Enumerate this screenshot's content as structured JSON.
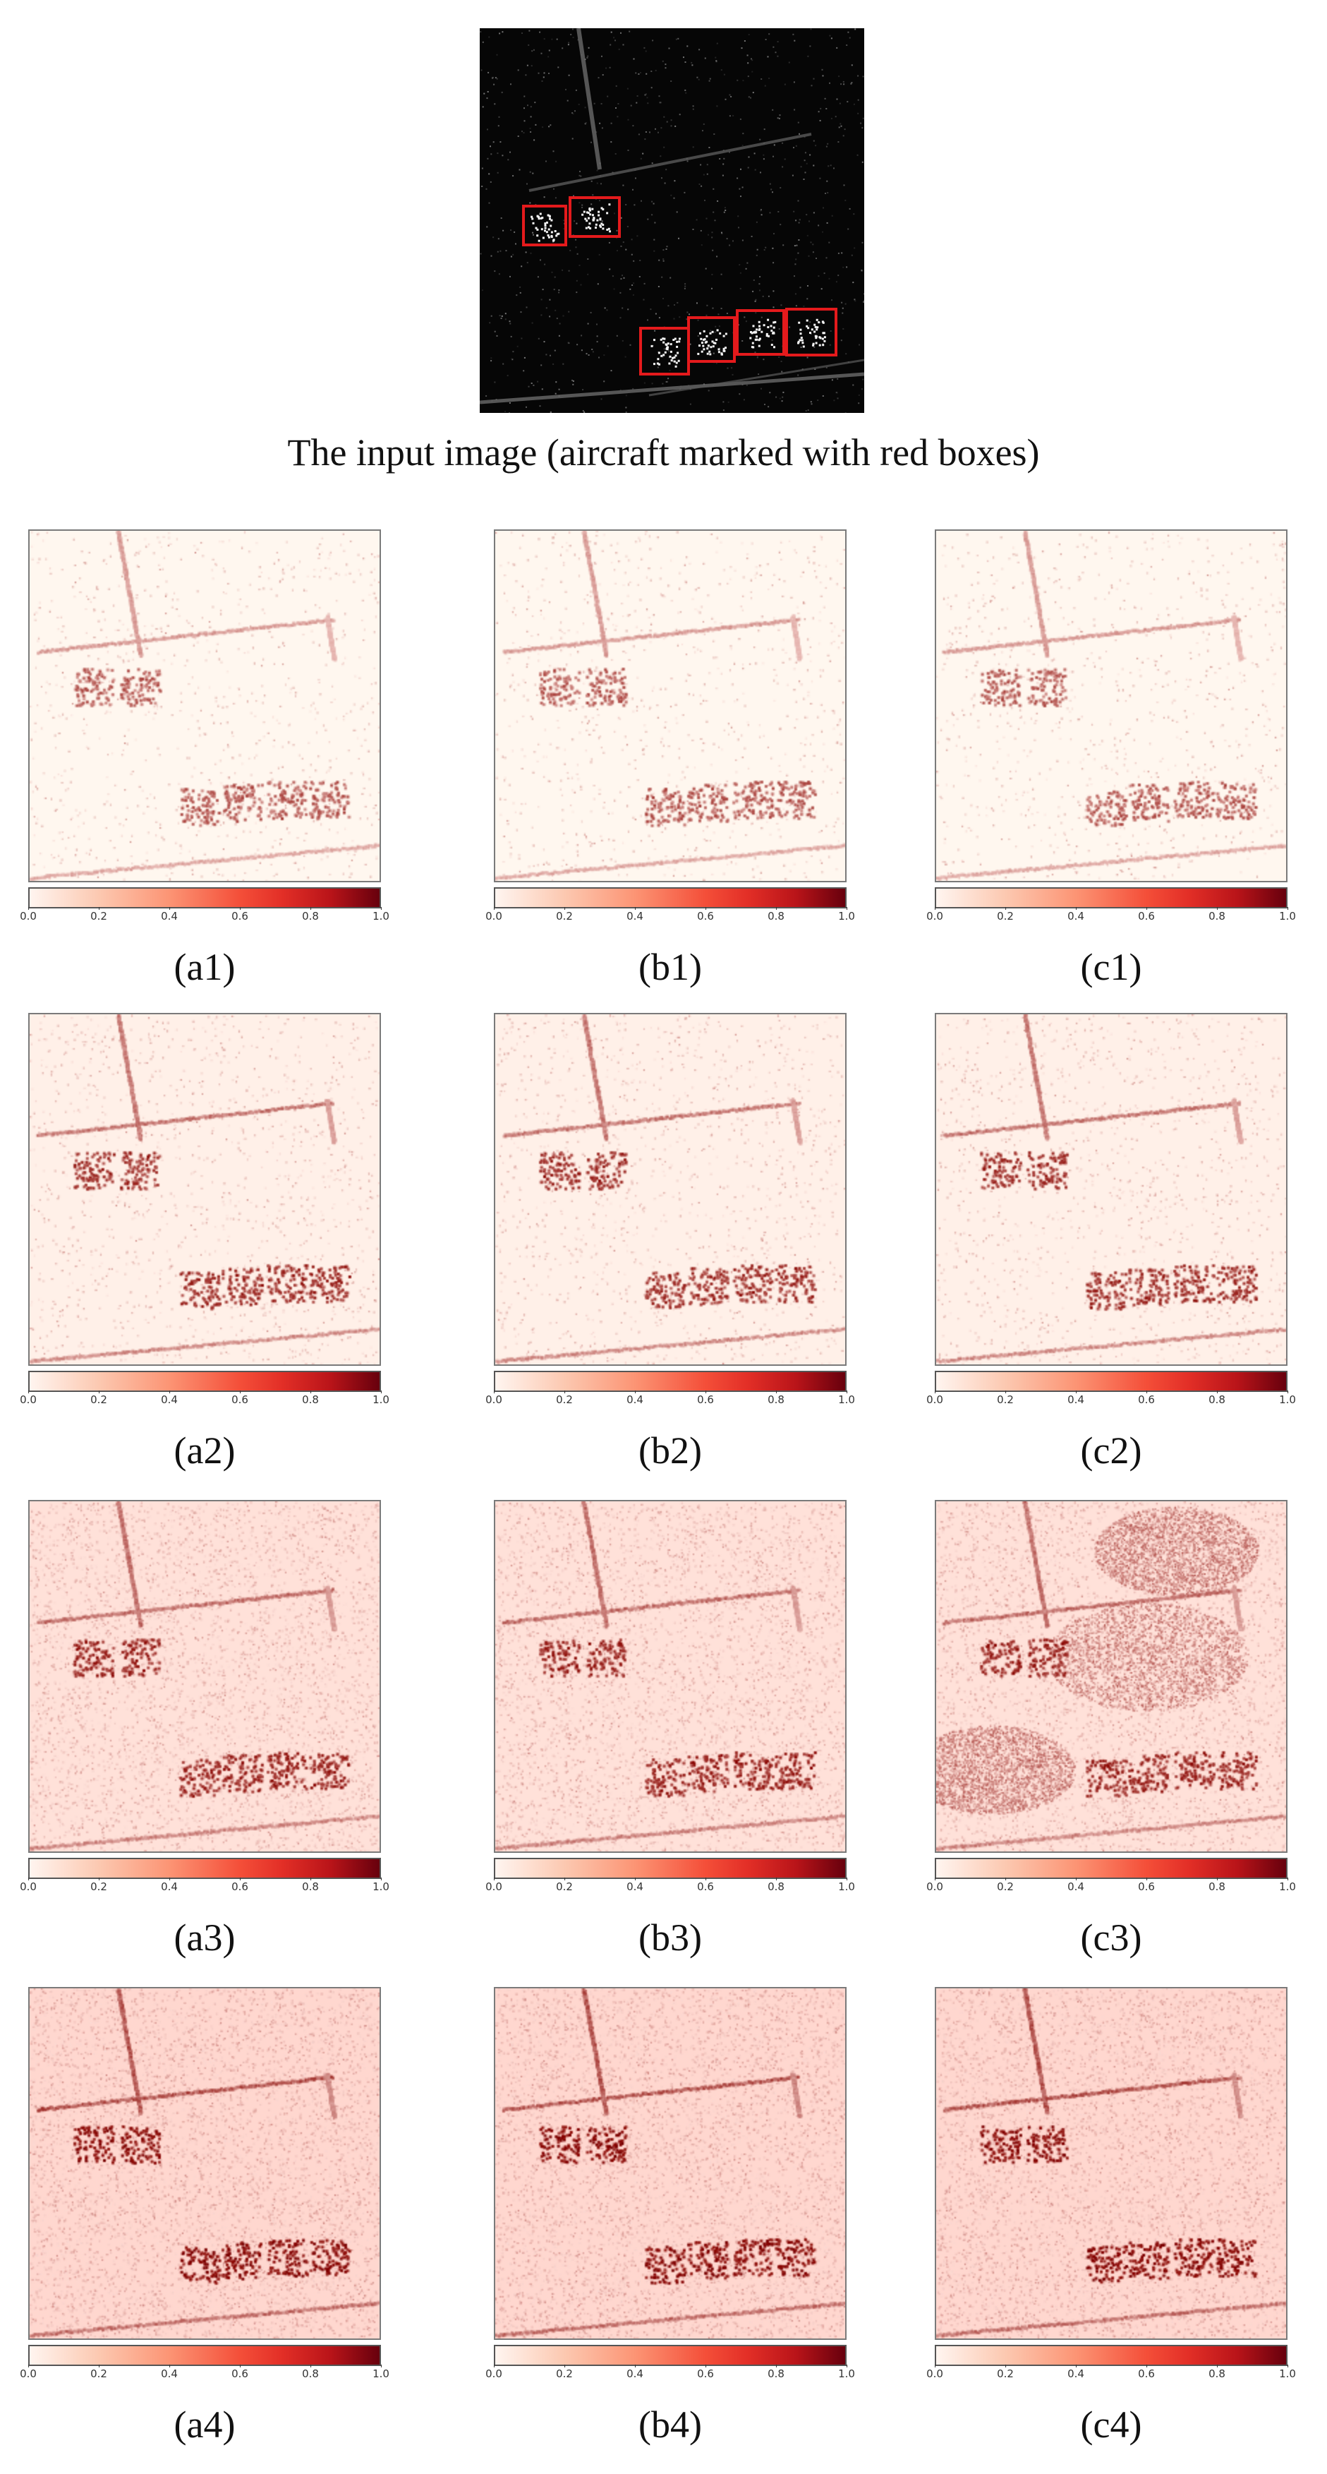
{
  "input_caption": "The input image (aircraft marked with red boxes)",
  "colorbar_ticks": [
    "0.0",
    "0.2",
    "0.4",
    "0.6",
    "0.8",
    "1.0"
  ],
  "colors": {
    "box": "#e41a1c",
    "heat_low": "#fff5f0",
    "heat_high": "#67000d"
  },
  "rows": [
    {
      "cells": [
        {
          "label": "(a1)"
        },
        {
          "label": "(b1)"
        },
        {
          "label": "(c1)"
        }
      ]
    },
    {
      "cells": [
        {
          "label": "(a2)"
        },
        {
          "label": "(b2)"
        },
        {
          "label": "(c2)"
        }
      ]
    },
    {
      "cells": [
        {
          "label": "(a3)"
        },
        {
          "label": "(b3)"
        },
        {
          "label": "(c3)"
        }
      ]
    },
    {
      "cells": [
        {
          "label": "(a4)"
        },
        {
          "label": "(b4)"
        },
        {
          "label": "(c4)"
        }
      ]
    }
  ]
}
